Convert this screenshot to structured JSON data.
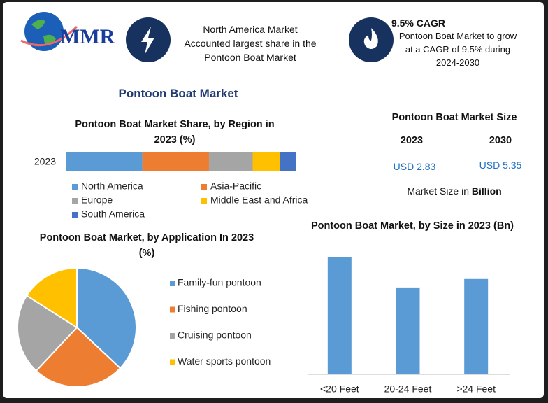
{
  "header": {
    "logo": "MMR",
    "highlight_lines": [
      "North America Market",
      "Accounted largest share in the",
      "Pontoon Boat Market"
    ],
    "cagr_title": "9.5% CAGR",
    "cagr_lines": [
      "Pontoon Boat Market to grow",
      "at a CAGR of 9.5% during",
      "2024-2030"
    ]
  },
  "title": "Pontoon Boat Market",
  "market_size": {
    "title": "Pontoon Boat Market Size",
    "columns": [
      {
        "year": "2023",
        "value": "USD 2.83"
      },
      {
        "year": "2030",
        "value": "USD 5.35"
      }
    ],
    "note": "Market Size in",
    "note_unit": "Billion"
  },
  "chart_data": [
    {
      "type": "stacked-bar-h",
      "title": "Pontoon Boat Market Share, by Region in 2023 (%)",
      "categories": [
        "2023"
      ],
      "series": [
        {
          "name": "North America",
          "color": "#5b9bd5",
          "values": [
            33
          ]
        },
        {
          "name": "Asia-Pacific",
          "color": "#ed7d31",
          "values": [
            29
          ]
        },
        {
          "name": "Europe",
          "color": "#a5a5a5",
          "values": [
            19
          ]
        },
        {
          "name": "Middle East and Africa",
          "color": "#ffc000",
          "values": [
            12
          ]
        },
        {
          "name": "South America",
          "color": "#4472c4",
          "values": [
            7
          ]
        }
      ]
    },
    {
      "type": "pie",
      "title": "Pontoon Boat Market, by Application In 2023 (%)",
      "categories": [
        "Family-fun pontoon",
        "Fishing pontoon",
        "Cruising pontoon",
        "Water sports pontoon"
      ],
      "values": [
        37,
        25,
        22,
        16
      ],
      "colors": [
        "#5b9bd5",
        "#ed7d31",
        "#a5a5a5",
        "#ffc000"
      ]
    },
    {
      "type": "bar",
      "title": "Pontoon Boat Market, by Size in 2023 (Bn)",
      "categories": [
        "<20 Feet",
        "20-24 Feet",
        ">24 Feet"
      ],
      "values": [
        1.11,
        0.82,
        0.9
      ],
      "color": "#5b9bd5"
    }
  ]
}
